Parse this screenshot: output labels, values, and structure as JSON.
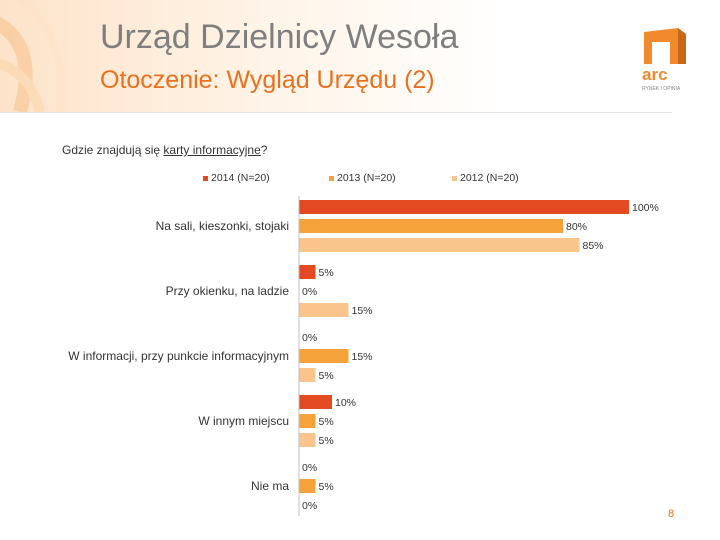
{
  "header": {
    "title": "Urząd Dzielnicy Wesoła",
    "subtitle": "Otoczenie: Wygląd Urzędu (2)"
  },
  "logo": {
    "text": "arc",
    "tagline": "RYNEK I OPINIA"
  },
  "question": {
    "before": "Gdzie znajdują się ",
    "underlined": "karty informacyjne",
    "after": "?"
  },
  "page_number": "8",
  "chart_data": {
    "type": "bar",
    "orientation": "horizontal",
    "categories": [
      "Na sali, kieszonki, stojaki",
      "Przy okienku, na ladzie",
      "W informacji, przy punkcie informacyjnym",
      "W innym miejscu",
      "Nie ma"
    ],
    "series": [
      {
        "name": "2014 (N=20)",
        "color": "#e34a22",
        "values": [
          100,
          5,
          0,
          10,
          0
        ]
      },
      {
        "name": "2013 (N=20)",
        "color": "#f5a23a",
        "values": [
          80,
          0,
          15,
          5,
          5
        ]
      },
      {
        "name": "2012 (N=20)",
        "color": "#fac58c",
        "values": [
          85,
          15,
          5,
          5,
          0
        ]
      }
    ],
    "value_suffix": "%",
    "xlim": [
      0,
      100
    ],
    "grid": false,
    "legend_position": "top"
  }
}
